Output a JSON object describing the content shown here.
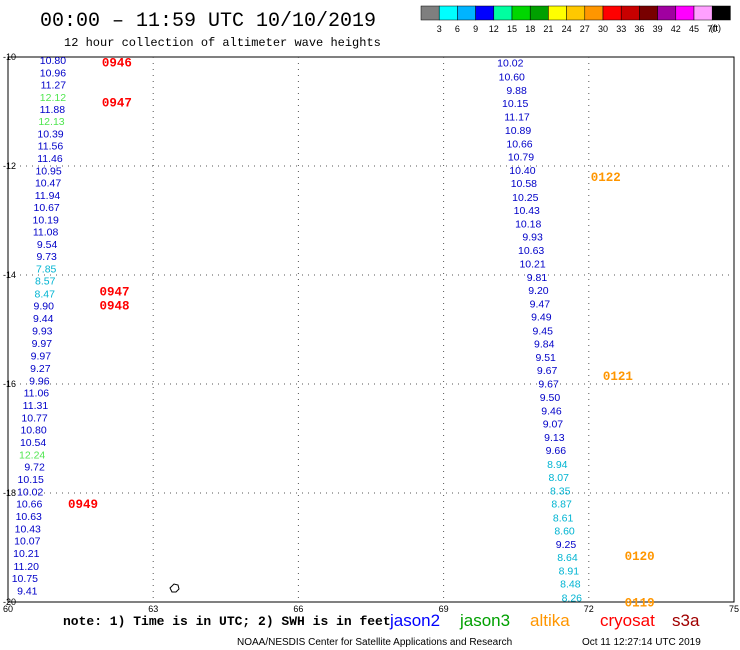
{
  "title": "00:00 – 11:59 UTC 10/10/2019",
  "subtitle": "12 hour collection of altimeter wave heights",
  "color_scale": {
    "colors": [
      "#7f7f7f",
      "#00ffff",
      "#00b4ff",
      "#0000ff",
      "#00ffa0",
      "#00d700",
      "#00a000",
      "#ffff00",
      "#ffc800",
      "#ff9600",
      "#ff0000",
      "#c80000",
      "#780000",
      "#a000a0",
      "#ff00ff",
      "#ffa0ff",
      "#000000"
    ],
    "labels": [
      "3",
      "6",
      "9",
      "12",
      "15",
      "18",
      "21",
      "24",
      "27",
      "30",
      "33",
      "36",
      "39",
      "42",
      "45",
      "70"
    ],
    "unit": "(ft)"
  },
  "axes": {
    "x_ticks": [
      "60",
      "63",
      "66",
      "69",
      "72",
      "75"
    ],
    "y_ticks": [
      "-10",
      "-12",
      "-14",
      "-16",
      "-18",
      "-20"
    ]
  },
  "satellites": [
    {
      "name": "jason2",
      "color": "#0000ff"
    },
    {
      "name": "jason3",
      "color": "#00a000"
    },
    {
      "name": "altika",
      "color": "#ff9600"
    },
    {
      "name": "cryosat",
      "color": "#ff0000"
    },
    {
      "name": "s3a",
      "color": "#a00000"
    }
  ],
  "note": "note: 1) Time is in UTC; 2) SWH is in feet",
  "credit": "NOAA/NESDIS Center for Satellite Applications and Research",
  "timestamp": "Oct 11 12:27:14 UTC 2019",
  "track_west": [
    {
      "lat": -10.0,
      "lon": 61.2,
      "val": "10.80",
      "c": "#0000c8"
    },
    {
      "lat": -10.23,
      "lon": 61.2,
      "val": "10.96",
      "c": "#0000c8"
    },
    {
      "lat": -10.45,
      "lon": 61.2,
      "val": "11.27",
      "c": "#0000c8"
    },
    {
      "lat": -10.68,
      "lon": 61.2,
      "val": "12.12",
      "c": "#50e650"
    },
    {
      "lat": -10.9,
      "lon": 61.18,
      "val": "11.88",
      "c": "#0000c8"
    },
    {
      "lat": -11.12,
      "lon": 61.17,
      "val": "12.13",
      "c": "#50e650"
    },
    {
      "lat": -11.35,
      "lon": 61.15,
      "val": "10.39",
      "c": "#0000c8"
    },
    {
      "lat": -11.57,
      "lon": 61.14,
      "val": "11.56",
      "c": "#0000c8"
    },
    {
      "lat": -11.8,
      "lon": 61.13,
      "val": "11.46",
      "c": "#0000c8"
    },
    {
      "lat": -12.03,
      "lon": 61.11,
      "val": "10.95",
      "c": "#0000c8"
    },
    {
      "lat": -12.25,
      "lon": 61.1,
      "val": "10.47",
      "c": "#0000c8"
    },
    {
      "lat": -12.48,
      "lon": 61.08,
      "val": "11.94",
      "c": "#0000c8"
    },
    {
      "lat": -12.7,
      "lon": 61.07,
      "val": "10.67",
      "c": "#0000c8"
    },
    {
      "lat": -12.93,
      "lon": 61.05,
      "val": "10.19",
      "c": "#0000c8"
    },
    {
      "lat": -13.15,
      "lon": 61.04,
      "val": "11.08",
      "c": "#0000c8"
    },
    {
      "lat": -13.38,
      "lon": 61.02,
      "val": "9.54",
      "c": "#0000c8"
    },
    {
      "lat": -13.6,
      "lon": 61.01,
      "val": "9.73",
      "c": "#0000c8"
    },
    {
      "lat": -13.83,
      "lon": 61.0,
      "val": "7.85",
      "c": "#00b4d2"
    },
    {
      "lat": -14.05,
      "lon": 60.98,
      "val": "8.57",
      "c": "#00b4d2"
    },
    {
      "lat": -14.28,
      "lon": 60.97,
      "val": "8.47",
      "c": "#00b4d2"
    },
    {
      "lat": -14.5,
      "lon": 60.95,
      "val": "9.90",
      "c": "#0000c8"
    },
    {
      "lat": -14.73,
      "lon": 60.94,
      "val": "9.44",
      "c": "#0000c8"
    },
    {
      "lat": -14.96,
      "lon": 60.92,
      "val": "9.93",
      "c": "#0000c8"
    },
    {
      "lat": -15.19,
      "lon": 60.91,
      "val": "9.97",
      "c": "#0000c8"
    },
    {
      "lat": -15.42,
      "lon": 60.89,
      "val": "9.97",
      "c": "#0000c8"
    },
    {
      "lat": -15.65,
      "lon": 60.88,
      "val": "9.27",
      "c": "#0000c8"
    },
    {
      "lat": -15.88,
      "lon": 60.86,
      "val": "9.96",
      "c": "#0000c8"
    },
    {
      "lat": -16.1,
      "lon": 60.85,
      "val": "11.06",
      "c": "#0000c8"
    },
    {
      "lat": -16.33,
      "lon": 60.83,
      "val": "11.31",
      "c": "#0000c8"
    },
    {
      "lat": -16.56,
      "lon": 60.82,
      "val": "10.77",
      "c": "#0000c8"
    },
    {
      "lat": -16.78,
      "lon": 60.8,
      "val": "10.80",
      "c": "#0000c8"
    },
    {
      "lat": -17.01,
      "lon": 60.79,
      "val": "10.54",
      "c": "#0000c8"
    },
    {
      "lat": -17.24,
      "lon": 60.77,
      "val": "12.24",
      "c": "#50e650"
    },
    {
      "lat": -17.46,
      "lon": 60.76,
      "val": "9.72",
      "c": "#0000c8"
    },
    {
      "lat": -17.69,
      "lon": 60.74,
      "val": "10.15",
      "c": "#0000c8"
    },
    {
      "lat": -17.92,
      "lon": 60.73,
      "val": "10.02",
      "c": "#0000c8"
    },
    {
      "lat": -18.14,
      "lon": 60.71,
      "val": "10.66",
      "c": "#0000c8"
    },
    {
      "lat": -18.37,
      "lon": 60.7,
      "val": "10.63",
      "c": "#0000c8"
    },
    {
      "lat": -18.6,
      "lon": 60.68,
      "val": "10.43",
      "c": "#0000c8"
    },
    {
      "lat": -18.82,
      "lon": 60.67,
      "val": "10.07",
      "c": "#0000c8"
    },
    {
      "lat": -19.05,
      "lon": 60.65,
      "val": "10.21",
      "c": "#0000c8"
    },
    {
      "lat": -19.28,
      "lon": 60.64,
      "val": "11.20",
      "c": "#0000c8"
    },
    {
      "lat": -19.5,
      "lon": 60.62,
      "val": "10.75",
      "c": "#0000c8"
    },
    {
      "lat": -19.73,
      "lon": 60.61,
      "val": "9.41",
      "c": "#0000c8"
    }
  ],
  "track_east": [
    {
      "lat": -10.05,
      "lon": 70.65,
      "val": "10.02",
      "c": "#0000c8"
    },
    {
      "lat": -10.3,
      "lon": 70.68,
      "val": "10.60",
      "c": "#0000c8"
    },
    {
      "lat": -10.55,
      "lon": 70.72,
      "val": "9.88",
      "c": "#0000c8"
    },
    {
      "lat": -10.79,
      "lon": 70.75,
      "val": "10.15",
      "c": "#0000c8"
    },
    {
      "lat": -11.04,
      "lon": 70.78,
      "val": "11.17",
      "c": "#0000c8"
    },
    {
      "lat": -11.28,
      "lon": 70.81,
      "val": "10.89",
      "c": "#0000c8"
    },
    {
      "lat": -11.53,
      "lon": 70.84,
      "val": "10.66",
      "c": "#0000c8"
    },
    {
      "lat": -11.77,
      "lon": 70.87,
      "val": "10.79",
      "c": "#0000c8"
    },
    {
      "lat": -12.02,
      "lon": 70.9,
      "val": "10.40",
      "c": "#0000c8"
    },
    {
      "lat": -12.26,
      "lon": 70.93,
      "val": "10.58",
      "c": "#0000c8"
    },
    {
      "lat": -12.51,
      "lon": 70.96,
      "val": "10.25",
      "c": "#0000c8"
    },
    {
      "lat": -12.75,
      "lon": 70.99,
      "val": "10.43",
      "c": "#0000c8"
    },
    {
      "lat": -13.0,
      "lon": 71.02,
      "val": "10.18",
      "c": "#0000c8"
    },
    {
      "lat": -13.24,
      "lon": 71.05,
      "val": "9.93",
      "c": "#0000c8"
    },
    {
      "lat": -13.49,
      "lon": 71.08,
      "val": "10.63",
      "c": "#0000c8"
    },
    {
      "lat": -13.73,
      "lon": 71.11,
      "val": "10.21",
      "c": "#0000c8"
    },
    {
      "lat": -13.98,
      "lon": 71.14,
      "val": "9.81",
      "c": "#0000c8"
    },
    {
      "lat": -14.22,
      "lon": 71.17,
      "val": "9.20",
      "c": "#0000c8"
    },
    {
      "lat": -14.47,
      "lon": 71.2,
      "val": "9.47",
      "c": "#0000c8"
    },
    {
      "lat": -14.71,
      "lon": 71.23,
      "val": "9.49",
      "c": "#0000c8"
    },
    {
      "lat": -14.96,
      "lon": 71.26,
      "val": "9.45",
      "c": "#0000c8"
    },
    {
      "lat": -15.2,
      "lon": 71.29,
      "val": "9.84",
      "c": "#0000c8"
    },
    {
      "lat": -15.45,
      "lon": 71.32,
      "val": "9.51",
      "c": "#0000c8"
    },
    {
      "lat": -15.69,
      "lon": 71.35,
      "val": "9.67",
      "c": "#0000c8"
    },
    {
      "lat": -15.94,
      "lon": 71.38,
      "val": "9.67",
      "c": "#0000c8"
    },
    {
      "lat": -16.18,
      "lon": 71.41,
      "val": "9.50",
      "c": "#0000c8"
    },
    {
      "lat": -16.43,
      "lon": 71.44,
      "val": "9.46",
      "c": "#0000c8"
    },
    {
      "lat": -16.67,
      "lon": 71.47,
      "val": "9.07",
      "c": "#0000c8"
    },
    {
      "lat": -16.92,
      "lon": 71.5,
      "val": "9.13",
      "c": "#0000c8"
    },
    {
      "lat": -17.16,
      "lon": 71.53,
      "val": "9.66",
      "c": "#0000c8"
    },
    {
      "lat": -17.41,
      "lon": 71.56,
      "val": "8.94",
      "c": "#00b4d2"
    },
    {
      "lat": -17.65,
      "lon": 71.59,
      "val": "8.07",
      "c": "#00b4d2"
    },
    {
      "lat": -17.9,
      "lon": 71.62,
      "val": "8.35",
      "c": "#00b4d2"
    },
    {
      "lat": -18.14,
      "lon": 71.65,
      "val": "8.87",
      "c": "#00b4d2"
    },
    {
      "lat": -18.39,
      "lon": 71.68,
      "val": "8.61",
      "c": "#00b4d2"
    },
    {
      "lat": -18.63,
      "lon": 71.71,
      "val": "8.60",
      "c": "#00b4d2"
    },
    {
      "lat": -18.88,
      "lon": 71.74,
      "val": "9.25",
      "c": "#0000c8"
    },
    {
      "lat": -19.12,
      "lon": 71.77,
      "val": "8.64",
      "c": "#00b4d2"
    },
    {
      "lat": -19.37,
      "lon": 71.8,
      "val": "8.91",
      "c": "#00b4d2"
    },
    {
      "lat": -19.61,
      "lon": 71.83,
      "val": "8.48",
      "c": "#00b4d2"
    },
    {
      "lat": -19.86,
      "lon": 71.86,
      "val": "8.26",
      "c": "#00b4d2"
    }
  ],
  "time_labels": [
    {
      "lat": -10.05,
      "lon": 62.25,
      "text": "0946",
      "c": "#ff0000"
    },
    {
      "lat": -10.78,
      "lon": 62.25,
      "text": "0947",
      "c": "#ff0000"
    },
    {
      "lat": -14.25,
      "lon": 62.2,
      "text": "0947",
      "c": "#ff0000"
    },
    {
      "lat": -14.5,
      "lon": 62.2,
      "text": "0948",
      "c": "#ff0000"
    },
    {
      "lat": -18.15,
      "lon": 61.55,
      "text": "0949",
      "c": "#ff0000"
    },
    {
      "lat": -12.15,
      "lon": 72.35,
      "text": "0122",
      "c": "#ff9600"
    },
    {
      "lat": -15.8,
      "lon": 72.6,
      "text": "0121",
      "c": "#ff9600"
    },
    {
      "lat": -19.1,
      "lon": 73.05,
      "text": "0120",
      "c": "#ff9600"
    },
    {
      "lat": -19.95,
      "lon": 73.05,
      "text": "0119",
      "c": "#ff9600"
    }
  ]
}
